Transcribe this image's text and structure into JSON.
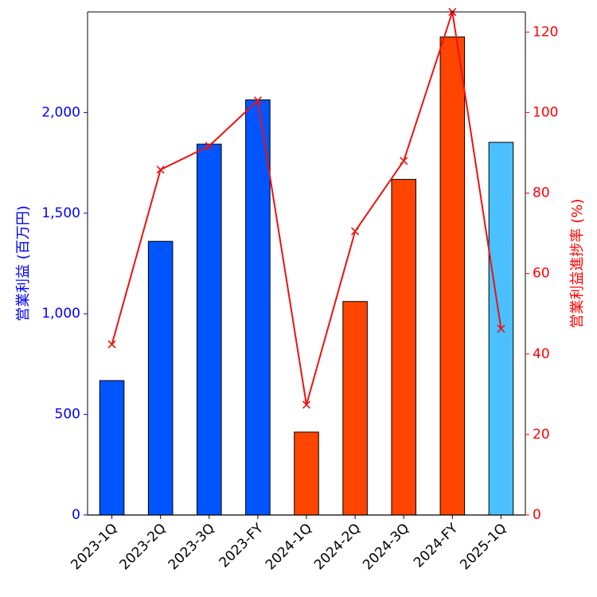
{
  "chart_data": {
    "type": "bar",
    "categories": [
      "2023-1Q",
      "2023-2Q",
      "2023-3Q",
      "2023-FY",
      "2024-1Q",
      "2024-2Q",
      "2024-3Q",
      "2024-FY",
      "2025-1Q"
    ],
    "ylabel": "営業利益 (百万円)",
    "ylabel_right": "営業利益進捗率 (%)",
    "ylim": [
      0,
      2500
    ],
    "ylim_right": [
      0,
      125
    ],
    "y_ticks": [
      "0",
      "500",
      "1,000",
      "1,500",
      "2,000"
    ],
    "y_tick_values": [
      0,
      500,
      1000,
      1500,
      2000
    ],
    "y_right_ticks": [
      "0",
      "20",
      "40",
      "60",
      "80",
      "100",
      "120"
    ],
    "y_right_tick_values": [
      0,
      20,
      40,
      60,
      80,
      100,
      120
    ],
    "series": [
      {
        "type": "bar",
        "values": [
          668,
          1360,
          1843,
          2063,
          412,
          1061,
          1668,
          2376,
          1852
        ],
        "colors": [
          "#0055ff",
          "#0055ff",
          "#0055ff",
          "#0055ff",
          "#ff4500",
          "#ff4500",
          "#ff4500",
          "#ff4500",
          "#4ac0ff"
        ]
      },
      {
        "type": "line",
        "axis": "right",
        "marker": "x",
        "color": "#ee1111",
        "values": [
          42.4,
          85.8,
          91.7,
          103.0,
          27.4,
          70.5,
          88.0,
          125.0,
          46.3
        ]
      }
    ],
    "left_axis_color": "#0000ff",
    "right_axis_color": "#ff0000",
    "grid": false,
    "legend": "none"
  }
}
